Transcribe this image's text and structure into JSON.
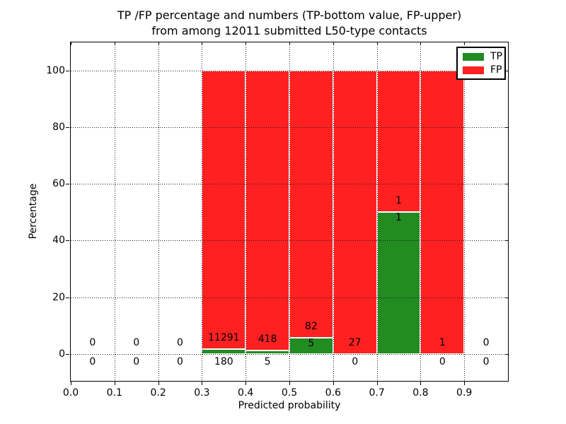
{
  "title": {
    "line1": "TP /FP percentage and numbers (TP-bottom value, FP-upper)",
    "line2": "from among 12011 submitted L50-type contacts"
  },
  "x_axis": {
    "label": "Predicted probability",
    "ticks": [
      "0.0",
      "0.1",
      "0.2",
      "0.3",
      "0.4",
      "0.5",
      "0.6",
      "0.7",
      "0.8",
      "0.9"
    ]
  },
  "y_axis": {
    "label": "Percentage",
    "ticks": [
      "0",
      "20",
      "40",
      "60",
      "80",
      "100"
    ]
  },
  "legend": {
    "items": [
      {
        "label": "TP",
        "color": "#228b22"
      },
      {
        "label": "FP",
        "color": "#ff2121"
      }
    ]
  },
  "chart_data": {
    "type": "bar",
    "stacked": true,
    "title": "TP /FP percentage and numbers (TP-bottom value, FP-upper) from among 12011 submitted L50-type contacts",
    "xlabel": "Predicted probability",
    "ylabel": "Percentage",
    "xlim": [
      0.0,
      1.0
    ],
    "ylim": [
      -10,
      110
    ],
    "grid": true,
    "grid_style": "dotted",
    "legend_position": "upper right",
    "bin_edges": [
      0.0,
      0.1,
      0.2,
      0.3,
      0.4,
      0.5,
      0.6,
      0.7,
      0.8,
      0.9,
      1.0
    ],
    "categories": [
      "0.0-0.1",
      "0.1-0.2",
      "0.2-0.3",
      "0.3-0.4",
      "0.4-0.5",
      "0.5-0.6",
      "0.6-0.7",
      "0.7-0.8",
      "0.8-0.9",
      "0.9-1.0"
    ],
    "series": [
      {
        "name": "TP",
        "color": "#228b22",
        "counts": [
          0,
          0,
          0,
          180,
          5,
          5,
          0,
          1,
          0,
          0
        ],
        "percent": [
          0,
          0,
          0,
          1.57,
          1.18,
          5.75,
          0,
          50,
          0,
          0
        ]
      },
      {
        "name": "FP",
        "color": "#ff2121",
        "counts": [
          0,
          0,
          0,
          11291,
          418,
          82,
          27,
          1,
          1,
          0
        ],
        "percent": [
          0,
          0,
          0,
          98.43,
          98.82,
          94.25,
          100,
          50,
          100,
          0
        ]
      }
    ],
    "total_contacts": 12011
  }
}
